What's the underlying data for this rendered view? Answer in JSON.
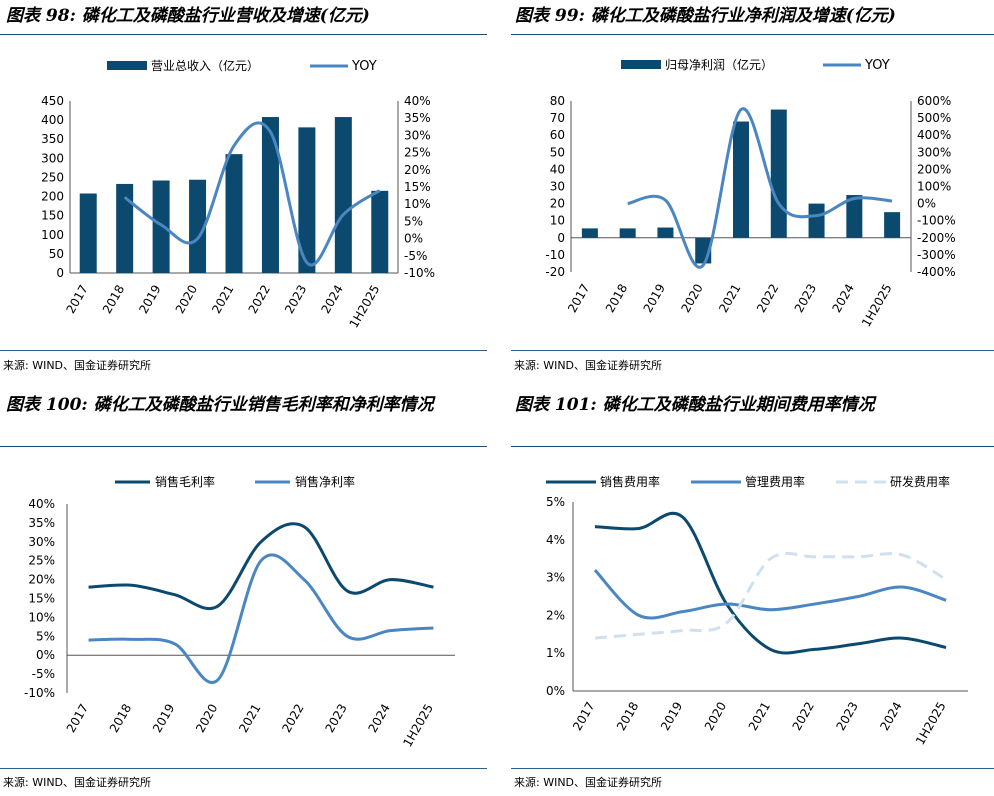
{
  "colors": {
    "dark": "#0b4a6e",
    "mid": "#4a86c2",
    "light": "#cfe0ef",
    "rule": "#1f4e79"
  },
  "panels": {
    "p1": {
      "title": "图表 98: 磷化工及磷酸盐行业营收及增速(亿元)",
      "source": "来源: WIND、国金证券研究所"
    },
    "p2": {
      "title": "图表 99: 磷化工及磷酸盐行业净利润及增速(亿元)",
      "source": "来源: WIND、国金证券研究所"
    },
    "p3": {
      "title": "图表 100: 磷化工及磷酸盐行业销售毛利率和净利率情况",
      "source": "来源: WIND、国金证券研究所"
    },
    "p4": {
      "title": "图表 101: 磷化工及磷酸盐行业期间费用率情况",
      "source": "来源: WIND、国金证券研究所"
    }
  },
  "chart_data": [
    {
      "id": "revenue",
      "type": "bar+line",
      "categories": [
        "2017",
        "2018",
        "2019",
        "2020",
        "2021",
        "2022",
        "2023",
        "2024",
        "1H2025"
      ],
      "series": [
        {
          "name": "营业总收入（亿元）",
          "type": "bar",
          "axis": "left",
          "values": [
            208,
            233,
            242,
            244,
            311,
            408,
            381,
            408,
            215
          ]
        },
        {
          "name": "YOY",
          "type": "line",
          "axis": "right",
          "values": [
            null,
            12,
            4,
            0,
            27,
            31,
            -7,
            7,
            14
          ]
        }
      ],
      "y_left": {
        "min": 0,
        "max": 450,
        "ticks": [
          "0",
          "50",
          "100",
          "150",
          "200",
          "250",
          "300",
          "350",
          "400",
          "450"
        ]
      },
      "y_right": {
        "min": -10,
        "max": 40,
        "ticks": [
          "-10%",
          "-5%",
          "0%",
          "5%",
          "10%",
          "15%",
          "20%",
          "25%",
          "30%",
          "35%",
          "40%"
        ]
      }
    },
    {
      "id": "net_profit",
      "type": "bar+line",
      "categories": [
        "2017",
        "2018",
        "2019",
        "2020",
        "2021",
        "2022",
        "2023",
        "2024",
        "1H2025"
      ],
      "series": [
        {
          "name": "归母净利润（亿元）",
          "type": "bar",
          "axis": "left",
          "values": [
            5.5,
            5.5,
            6,
            -15,
            68,
            75,
            20,
            25,
            15
          ]
        },
        {
          "name": "YOY",
          "type": "line",
          "axis": "right",
          "values": [
            null,
            0,
            20,
            -360,
            550,
            0,
            -70,
            30,
            15
          ]
        }
      ],
      "y_left": {
        "min": -20,
        "max": 80,
        "ticks": [
          "-20",
          "-10",
          "0",
          "10",
          "20",
          "30",
          "40",
          "50",
          "60",
          "70",
          "80"
        ]
      },
      "y_right": {
        "min": -400,
        "max": 600,
        "ticks": [
          "-400%",
          "-300%",
          "-200%",
          "-100%",
          "0%",
          "100%",
          "200%",
          "300%",
          "400%",
          "500%",
          "600%"
        ]
      }
    },
    {
      "id": "margins",
      "type": "line",
      "categories": [
        "2017",
        "2018",
        "2019",
        "2020",
        "2021",
        "2022",
        "2023",
        "2024",
        "1H2025"
      ],
      "series": [
        {
          "name": "销售毛利率",
          "values": [
            18,
            18.5,
            16,
            13,
            30,
            34,
            17,
            20,
            18
          ]
        },
        {
          "name": "销售净利率",
          "values": [
            4,
            4.2,
            3,
            -6.5,
            25,
            20,
            5,
            6.5,
            7.2
          ]
        }
      ],
      "y": {
        "min": -10,
        "max": 40,
        "ticks": [
          "-10%",
          "-5%",
          "0%",
          "5%",
          "10%",
          "15%",
          "20%",
          "25%",
          "30%",
          "35%",
          "40%"
        ]
      }
    },
    {
      "id": "expense_ratios",
      "type": "line",
      "categories": [
        "2017",
        "2018",
        "2019",
        "2020",
        "2021",
        "2022",
        "2023",
        "2024",
        "1H2025"
      ],
      "series": [
        {
          "name": "销售费用率",
          "values": [
            4.35,
            4.3,
            4.6,
            2.3,
            1.1,
            1.1,
            1.25,
            1.4,
            1.15
          ]
        },
        {
          "name": "管理费用率",
          "values": [
            3.2,
            2.0,
            2.1,
            2.3,
            2.15,
            2.3,
            2.5,
            2.75,
            2.4
          ]
        },
        {
          "name": "研发费用率",
          "values": [
            1.4,
            1.5,
            1.6,
            1.8,
            3.5,
            3.55,
            3.55,
            3.6,
            2.95
          ]
        }
      ],
      "y": {
        "min": 0,
        "max": 5,
        "ticks": [
          "0%",
          "1%",
          "2%",
          "3%",
          "4%",
          "5%"
        ]
      }
    }
  ]
}
